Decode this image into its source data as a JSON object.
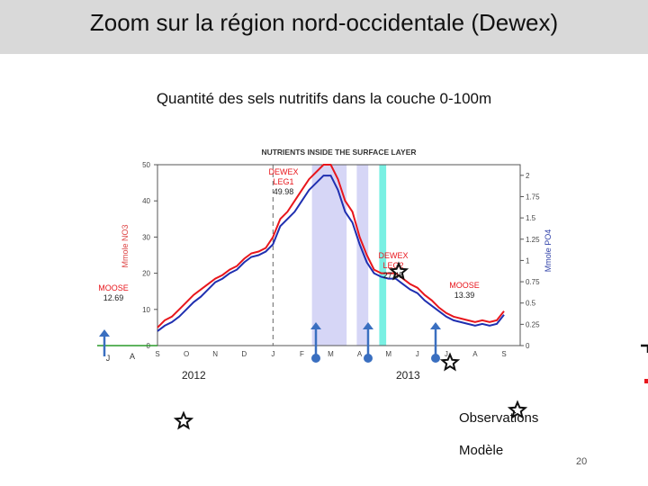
{
  "slide": {
    "title": "Zoom sur la région nord-occidentale (Dewex)",
    "subtitle": "Quantité des sels nutritifs dans la couche 0-100m",
    "page_number": "20"
  },
  "legend": {
    "observations": "Observations",
    "model": "Modèle"
  },
  "years": [
    "2012",
    "2013"
  ],
  "chart_data": {
    "type": "line",
    "title": "NUTRIENTS INSIDE THE SURFACE LAYER",
    "ylabel_left": "Mmole NO3",
    "ylabel_right": "Mmole PO4",
    "ylim_left": [
      0,
      50
    ],
    "ylim_right": [
      0,
      2.125
    ],
    "yticks_left": [
      0,
      10,
      20,
      30,
      40,
      50
    ],
    "yticks_right": [
      "0",
      "0.25",
      "0.5",
      "0.75",
      "1",
      "1.25",
      "1.5",
      "1.75",
      "2"
    ],
    "x_months": [
      "S",
      "O",
      "N",
      "D",
      "J",
      "F",
      "M",
      "A",
      "M",
      "J",
      "J",
      "A",
      "S"
    ],
    "left_marks": [
      "J",
      "A"
    ],
    "x": [
      0,
      0.25,
      0.5,
      0.75,
      1,
      1.25,
      1.5,
      1.75,
      2,
      2.25,
      2.5,
      2.75,
      3,
      3.25,
      3.5,
      3.75,
      4,
      4.25,
      4.5,
      4.75,
      5,
      5.25,
      5.5,
      5.75,
      6,
      6.25,
      6.5,
      6.75,
      7,
      7.25,
      7.5,
      7.75,
      8,
      8.25,
      8.5,
      8.75,
      9,
      9.25,
      9.5,
      9.75,
      10,
      10.25,
      10.5,
      10.75,
      11,
      11.25,
      11.5,
      11.75,
      12
    ],
    "series": [
      {
        "color": "#e8161c",
        "values": [
          5,
          7,
          8,
          10,
          12,
          14,
          15.5,
          17,
          18.5,
          19.5,
          21,
          22,
          24,
          25.5,
          26,
          27,
          30,
          35,
          37,
          40,
          43,
          46,
          48,
          50,
          50,
          46,
          40,
          37,
          30,
          25,
          21,
          20,
          20,
          20,
          18.5,
          17,
          16,
          14,
          12.5,
          10.5,
          9,
          8,
          7.5,
          7,
          6.5,
          7,
          6.5,
          7,
          9.5
        ]
      },
      {
        "color": "#1f2fb0",
        "values": [
          4,
          5.5,
          6.5,
          8,
          10,
          12,
          13.5,
          15.5,
          17.5,
          18.5,
          20,
          21,
          23,
          24.5,
          25,
          26,
          28,
          33,
          35,
          37,
          40,
          43,
          45,
          47,
          47,
          43,
          37,
          34,
          28,
          23,
          20,
          19,
          18.5,
          18.5,
          17,
          15.5,
          14.5,
          12.5,
          11,
          9.5,
          8,
          7,
          6.5,
          6,
          5.5,
          6,
          5.5,
          6,
          8.5
        ]
      }
    ],
    "shaded_periods": [
      {
        "x_start": 5.35,
        "x_end": 6.55,
        "color": "#d6d6f6"
      },
      {
        "x_start": 6.9,
        "x_end": 7.3,
        "color": "#d6d6f6"
      },
      {
        "x_start": 7.68,
        "x_end": 7.92,
        "color": "#79f0e3"
      }
    ],
    "annotations": [
      {
        "label": [
          "DEWEX",
          "LEG1",
          "49.98"
        ],
        "color": "#e8161c"
      },
      {
        "label": [
          "DEWEX",
          "LEG2",
          "27.45"
        ],
        "color": "#e8161c"
      },
      {
        "label": [
          "MOOSE",
          "12.69"
        ],
        "color": "#e8161c"
      },
      {
        "label": [
          "MOOSE",
          "13.39"
        ],
        "color": "#e8161c"
      }
    ]
  }
}
